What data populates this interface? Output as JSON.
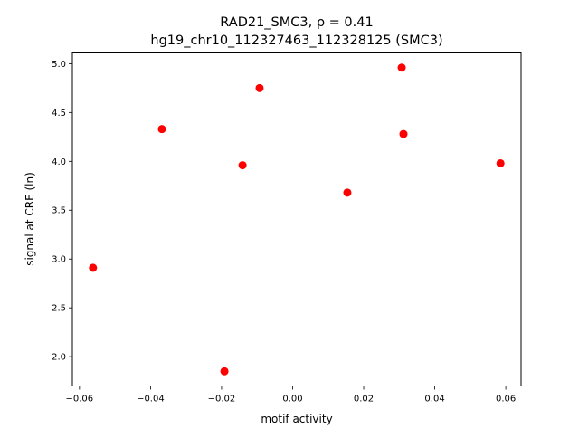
{
  "chart_data": {
    "type": "scatter",
    "title_line1": "RAD21_SMC3, ρ = 0.41",
    "title_line2": "hg19_chr10_112327463_112328125 (SMC3)",
    "xlabel": "motif activity",
    "ylabel": "signal at CRE (ln)",
    "xlim": [
      -0.062,
      0.0643
    ],
    "ylim": [
      1.7,
      5.11
    ],
    "xticks": [
      -0.06,
      -0.04,
      -0.02,
      0.0,
      0.02,
      0.04,
      0.06
    ],
    "xtick_labels": [
      "−0.06",
      "−0.04",
      "−0.02",
      "0.00",
      "0.02",
      "0.04",
      "0.06"
    ],
    "yticks": [
      2.0,
      2.5,
      3.0,
      3.5,
      4.0,
      4.5,
      5.0
    ],
    "ytick_labels": [
      "2.0",
      "2.5",
      "3.0",
      "3.5",
      "4.0",
      "4.5",
      "5.0"
    ],
    "marker_color": "#ff0000",
    "grid": false,
    "points": [
      {
        "x": -0.0562,
        "y": 2.91
      },
      {
        "x": -0.0368,
        "y": 4.33
      },
      {
        "x": -0.0192,
        "y": 1.85
      },
      {
        "x": -0.0141,
        "y": 3.96
      },
      {
        "x": -0.0093,
        "y": 4.75
      },
      {
        "x": 0.0154,
        "y": 3.68
      },
      {
        "x": 0.0307,
        "y": 4.96
      },
      {
        "x": 0.0312,
        "y": 4.28
      },
      {
        "x": 0.0585,
        "y": 3.98
      }
    ]
  }
}
